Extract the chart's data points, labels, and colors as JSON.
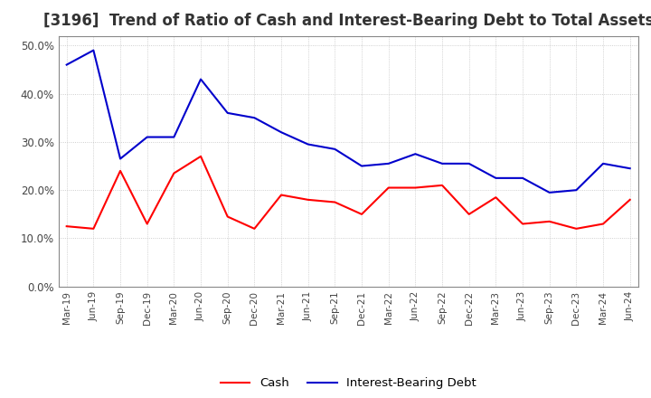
{
  "title": "[3196]  Trend of Ratio of Cash and Interest-Bearing Debt to Total Assets",
  "labels": [
    "Mar-19",
    "Jun-19",
    "Sep-19",
    "Dec-19",
    "Mar-20",
    "Jun-20",
    "Sep-20",
    "Dec-20",
    "Mar-21",
    "Jun-21",
    "Sep-21",
    "Dec-21",
    "Mar-22",
    "Jun-22",
    "Sep-22",
    "Dec-22",
    "Mar-23",
    "Jun-23",
    "Sep-23",
    "Dec-23",
    "Mar-24",
    "Jun-24"
  ],
  "cash": [
    0.125,
    0.12,
    0.24,
    0.13,
    0.235,
    0.27,
    0.145,
    0.12,
    0.19,
    0.18,
    0.175,
    0.15,
    0.205,
    0.205,
    0.21,
    0.15,
    0.185,
    0.13,
    0.135,
    0.12,
    0.13,
    0.18
  ],
  "ibd": [
    0.46,
    0.49,
    0.265,
    0.31,
    0.31,
    0.43,
    0.36,
    0.35,
    0.32,
    0.295,
    0.285,
    0.25,
    0.255,
    0.275,
    0.255,
    0.255,
    0.225,
    0.225,
    0.195,
    0.2,
    0.255,
    0.245
  ],
  "cash_color": "#ff0000",
  "ibd_color": "#0000cc",
  "ylim": [
    0.0,
    0.52
  ],
  "yticks": [
    0.0,
    0.1,
    0.2,
    0.3,
    0.4,
    0.5
  ],
  "bg_color": "#ffffff",
  "plot_bg_color": "#ffffff",
  "grid_color": "#bbbbbb",
  "title_fontsize": 12,
  "title_color": "#333333",
  "legend_cash": "Cash",
  "legend_ibd": "Interest-Bearing Debt",
  "tick_color": "#444444",
  "spine_color": "#888888"
}
